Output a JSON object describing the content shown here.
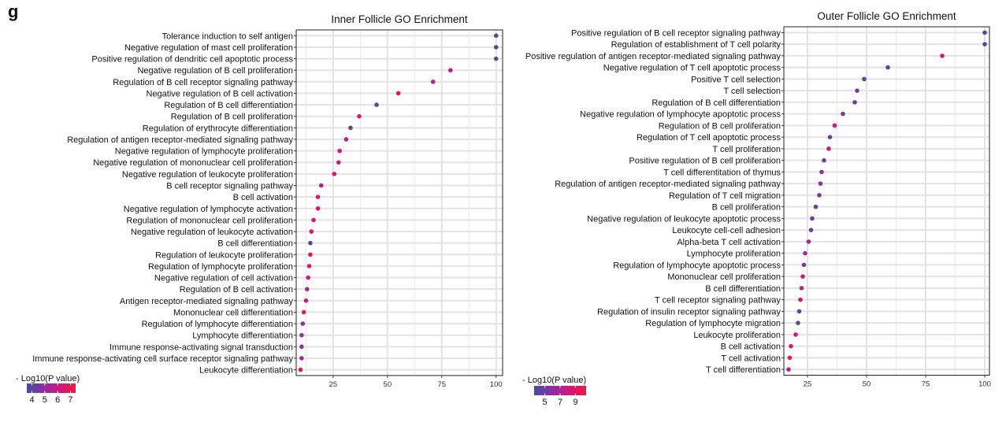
{
  "panel_label": "g",
  "chart_data": [
    {
      "type": "scatter",
      "title": "Inner Follicle GO Enrichment",
      "xlabel": "",
      "ylabel": "",
      "xlim": [
        8,
        103
      ],
      "xticks": [
        25,
        50,
        75,
        100
      ],
      "grid": true,
      "legend": {
        "title": "- Log10(P value)",
        "placement": "bottom-left",
        "ticks": [
          4,
          5,
          6,
          7
        ],
        "range": [
          3.6,
          7.4
        ]
      },
      "colorscale": [
        "#3f4fa3",
        "#8a2fa5",
        "#d4147e",
        "#ee1c3a"
      ],
      "categories": [
        "Tolerance induction to self antigen",
        "Negative regulation of mast cell proliferation",
        "Positive regulation of dendritic cell apoptotic process",
        "Negative regulation of B cell proliferation",
        "Regulation of B cell receptor signaling pathway",
        "Negative regulation of B cell activation",
        "Regulation of B cell differentiation",
        "Regulation of B cell proliferation",
        "Regulation of erythrocyte differentiation",
        "Regulation of antigen receptor-mediated signaling pathway",
        "Negative regulation of lymphocyte proliferation",
        "Negative regulation of mononuclear cell proliferation",
        "Negative regulation of leukocyte proliferation",
        "B cell receptor signaling pathway",
        "B cell activation",
        "Negative regulation of lymphocyte activation",
        "Regulation of mononuclear cell proliferation",
        "Negative regulation of leukocyte activation",
        "B cell differentiation",
        "Regulation of leukocyte proliferation",
        "Regulation of lymphocyte proliferation",
        "Negative regulation of cell activation",
        "Regulation of B cell activation",
        "Antigen receptor-mediated signaling pathway",
        "Mononuclear cell differentiation",
        "Regulation of lymphocyte differentiation",
        "Lymphocyte differentiation",
        "Immune response-activating signal transduction",
        "Immune response-activating cell surface receptor signaling pathway",
        "Leukocyte differentiation"
      ],
      "values": [
        100,
        100,
        100,
        79,
        71,
        55,
        45,
        37,
        33,
        31,
        28,
        27.5,
        25.5,
        19.5,
        18,
        18,
        16,
        15,
        14.5,
        14.5,
        14,
        13.5,
        13,
        12.5,
        11.5,
        11,
        10.5,
        10.5,
        10.5,
        10
      ],
      "colors": [
        4.0,
        4.0,
        4.0,
        5.5,
        5.6,
        6.8,
        4.2,
        6.9,
        4.5,
        5.5,
        6.3,
        6.2,
        6.4,
        5.5,
        6.6,
        6.3,
        6.5,
        6.4,
        4.1,
        6.6,
        6.4,
        6.1,
        5.4,
        6.0,
        6.8,
        4.6,
        5.0,
        5.0,
        5.0,
        6.8
      ]
    },
    {
      "type": "scatter",
      "title": "Outer Follicle GO Enrichment",
      "xlabel": "",
      "ylabel": "",
      "xlim": [
        15,
        102
      ],
      "xticks": [
        25,
        50,
        75,
        100
      ],
      "grid": true,
      "legend": {
        "title": "- Log10(P value)",
        "placement": "bottom-left",
        "ticks": [
          5,
          7,
          9
        ],
        "range": [
          3.6,
          10.4
        ]
      },
      "colorscale": [
        "#3f4fa3",
        "#8a2fa5",
        "#d4147e",
        "#ee1c3a"
      ],
      "categories": [
        "Positive regulation of B cell receptor signaling pathway",
        "Regulation of establishment of T cell polarity",
        "Positive regulation of antigen receptor-mediated signaling pathway",
        "Negative regulation of T cell apoptotic process",
        "Positive T cell selection",
        "T cell selection",
        "Regulation of B cell differentiation",
        "Negative regulation of lymphocyte apoptotic process",
        "Regulation of B cell proliferation",
        "Regulation of T cell apoptotic process",
        "T cell proliferation",
        "Positive regulation of B cell proliferation",
        "T cell differentitation of thymus",
        "Regulation of antigen receptor-mediated signaling pathway",
        "Regulation of T cell migration",
        "B cell proliferation",
        "Negative regulation of leukocyte apoptotic process",
        "Leukocyte cell-cell adhesion",
        "Alpha-beta T cell activation",
        "Lymphocyte proliferation",
        "Regulation of lymphocyte apoptotic process",
        "Mononuclear cell proliferation",
        "B cell differentiation",
        "T cell receptor signaling pathway",
        "Regulation of insulin receptor signaling pathway",
        "Regulation of lymphocyte migration",
        "Leukocyte proliferation",
        "B cell activation",
        "T cell activation",
        "T cell differentiation"
      ],
      "values": [
        100,
        100,
        82,
        59,
        49,
        46,
        45,
        40,
        36.5,
        34.5,
        34,
        32,
        31,
        30.5,
        30,
        28.5,
        27,
        26.5,
        25.5,
        24,
        23.5,
        23,
        22.5,
        22,
        21.5,
        21,
        20,
        18,
        17.5,
        17
      ],
      "colors": [
        4.5,
        4.5,
        8.0,
        4.6,
        4.8,
        6.0,
        4.6,
        4.8,
        8.5,
        5.2,
        7.5,
        5.0,
        6.5,
        6.0,
        5.0,
        4.8,
        4.7,
        4.7,
        6.3,
        6.8,
        5.0,
        7.3,
        7.5,
        8.0,
        4.6,
        4.6,
        8.5,
        9.5,
        10.0,
        7.5
      ]
    }
  ]
}
